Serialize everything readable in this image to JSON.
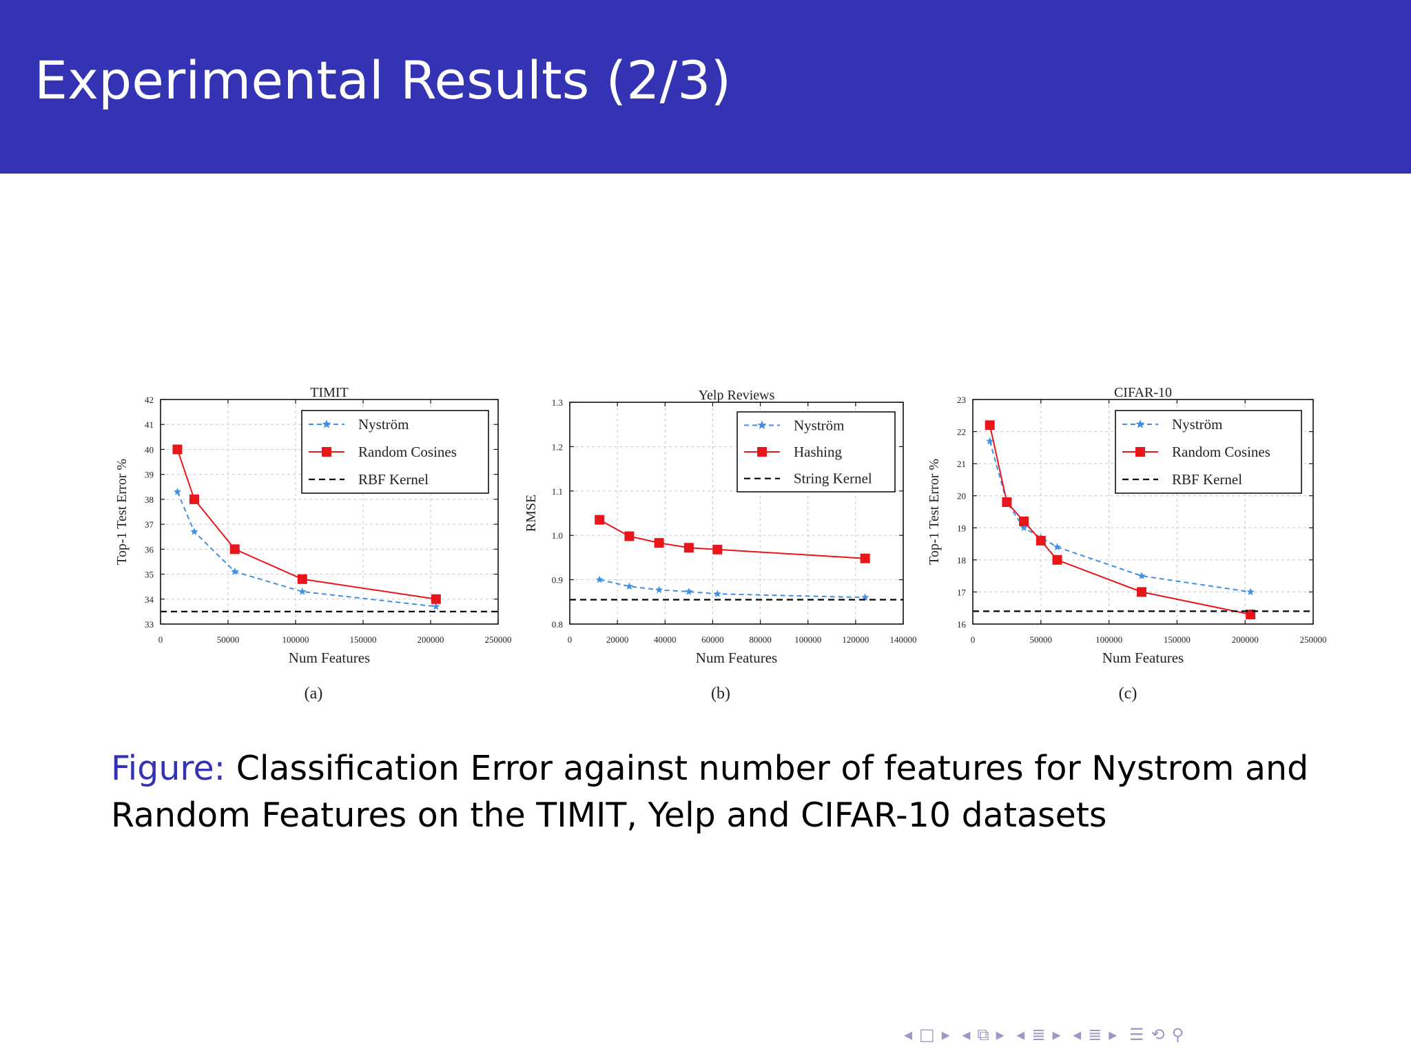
{
  "slide": {
    "title": "Experimental Results (2/3)",
    "caption_label": "Figure:",
    "caption_text": " Classification Error against number of features for Nystrom and Random Features on the TIMIT, Yelp and CIFAR-10 datasets"
  },
  "colors": {
    "title_bar": "#3333b3",
    "nystrom": "#3f8fe6",
    "red_series": "#e8151b",
    "baseline": "#000000"
  },
  "navigation": {
    "icons": [
      "nav-prev-icon",
      "frame-icon",
      "nav-next-icon",
      "nav-prev-icon",
      "subsection-icon",
      "nav-next-icon",
      "nav-prev-icon",
      "section-icon",
      "nav-next-icon",
      "nav-prev-icon",
      "align-icon",
      "nav-next-icon",
      "search-icon",
      "zoom-icon"
    ]
  },
  "chart_data": [
    {
      "type": "line",
      "title": "TIMIT",
      "panel_label": "(a)",
      "xlabel": "Num Features",
      "ylabel": "Top-1 Test Error %",
      "xlim": [
        0,
        250000
      ],
      "ylim": [
        33,
        42
      ],
      "xticks": [
        0,
        50000,
        100000,
        150000,
        200000,
        250000
      ],
      "xtick_labels": [
        "0",
        "50000",
        "100000",
        "150000",
        "200000",
        "250000"
      ],
      "yticks": [
        33,
        34,
        35,
        36,
        37,
        38,
        39,
        40,
        41,
        42
      ],
      "ytick_labels": [
        "33",
        "34",
        "35",
        "36",
        "37",
        "38",
        "39",
        "40",
        "41",
        "42"
      ],
      "grid": true,
      "legend_position": "top-right",
      "series": [
        {
          "name": "Nyström",
          "style": "nystrom",
          "x": [
            12500,
            25000,
            55000,
            105000,
            204000
          ],
          "y": [
            38.3,
            36.7,
            35.1,
            34.3,
            33.7
          ]
        },
        {
          "name": "Random Cosines",
          "style": "red",
          "x": [
            12500,
            25000,
            55000,
            105000,
            204000
          ],
          "y": [
            40.0,
            38.0,
            36.0,
            34.8,
            34.0
          ]
        },
        {
          "name": "RBF Kernel",
          "style": "baseline",
          "x": [
            0,
            250000
          ],
          "y": [
            33.5,
            33.5
          ]
        }
      ]
    },
    {
      "type": "line",
      "title": "Yelp Reviews",
      "panel_label": "(b)",
      "xlabel": "Num Features",
      "ylabel": "RMSE",
      "xlim": [
        0,
        140000
      ],
      "ylim": [
        0.8,
        1.3
      ],
      "xticks": [
        0,
        20000,
        40000,
        60000,
        80000,
        100000,
        120000,
        140000
      ],
      "xtick_labels": [
        "0",
        "20000",
        "40000",
        "60000",
        "80000",
        "100000",
        "120000",
        "140000"
      ],
      "yticks": [
        0.8,
        0.9,
        1.0,
        1.1,
        1.2,
        1.3
      ],
      "ytick_labels": [
        "0.8",
        "0.9",
        "1.0",
        "1.1",
        "1.2",
        "1.3"
      ],
      "grid": true,
      "legend_position": "top-right",
      "series": [
        {
          "name": "Nyström",
          "style": "nystrom",
          "x": [
            12500,
            25000,
            37500,
            50000,
            62000,
            124000
          ],
          "y": [
            0.9,
            0.885,
            0.877,
            0.873,
            0.868,
            0.86
          ]
        },
        {
          "name": "Hashing",
          "style": "red",
          "x": [
            12500,
            25000,
            37500,
            50000,
            62000,
            124000
          ],
          "y": [
            1.035,
            0.998,
            0.983,
            0.972,
            0.968,
            0.948
          ]
        },
        {
          "name": "String Kernel",
          "style": "baseline",
          "x": [
            0,
            140000
          ],
          "y": [
            0.855,
            0.855
          ]
        }
      ]
    },
    {
      "type": "line",
      "title": "CIFAR-10",
      "panel_label": "(c)",
      "xlabel": "Num Features",
      "ylabel": "Top-1 Test Error %",
      "xlim": [
        0,
        250000
      ],
      "ylim": [
        16,
        23
      ],
      "xticks": [
        0,
        50000,
        100000,
        150000,
        200000,
        250000
      ],
      "xtick_labels": [
        "0",
        "50000",
        "100000",
        "150000",
        "200000",
        "250000"
      ],
      "yticks": [
        16,
        17,
        18,
        19,
        20,
        21,
        22,
        23
      ],
      "ytick_labels": [
        "16",
        "17",
        "18",
        "19",
        "20",
        "21",
        "22",
        "23"
      ],
      "grid": true,
      "legend_position": "top-right",
      "series": [
        {
          "name": "Nyström",
          "style": "nystrom",
          "x": [
            12500,
            25000,
            37500,
            50000,
            62000,
            124000,
            204000
          ],
          "y": [
            21.7,
            19.8,
            19.0,
            18.7,
            18.4,
            17.5,
            17.0
          ]
        },
        {
          "name": "Random Cosines",
          "style": "red",
          "x": [
            12500,
            25000,
            37500,
            50000,
            62000,
            124000,
            204000
          ],
          "y": [
            22.2,
            19.8,
            19.2,
            18.6,
            18.0,
            17.0,
            16.3
          ]
        },
        {
          "name": "RBF Kernel",
          "style": "baseline",
          "x": [
            0,
            250000
          ],
          "y": [
            16.4,
            16.4
          ]
        }
      ]
    }
  ]
}
